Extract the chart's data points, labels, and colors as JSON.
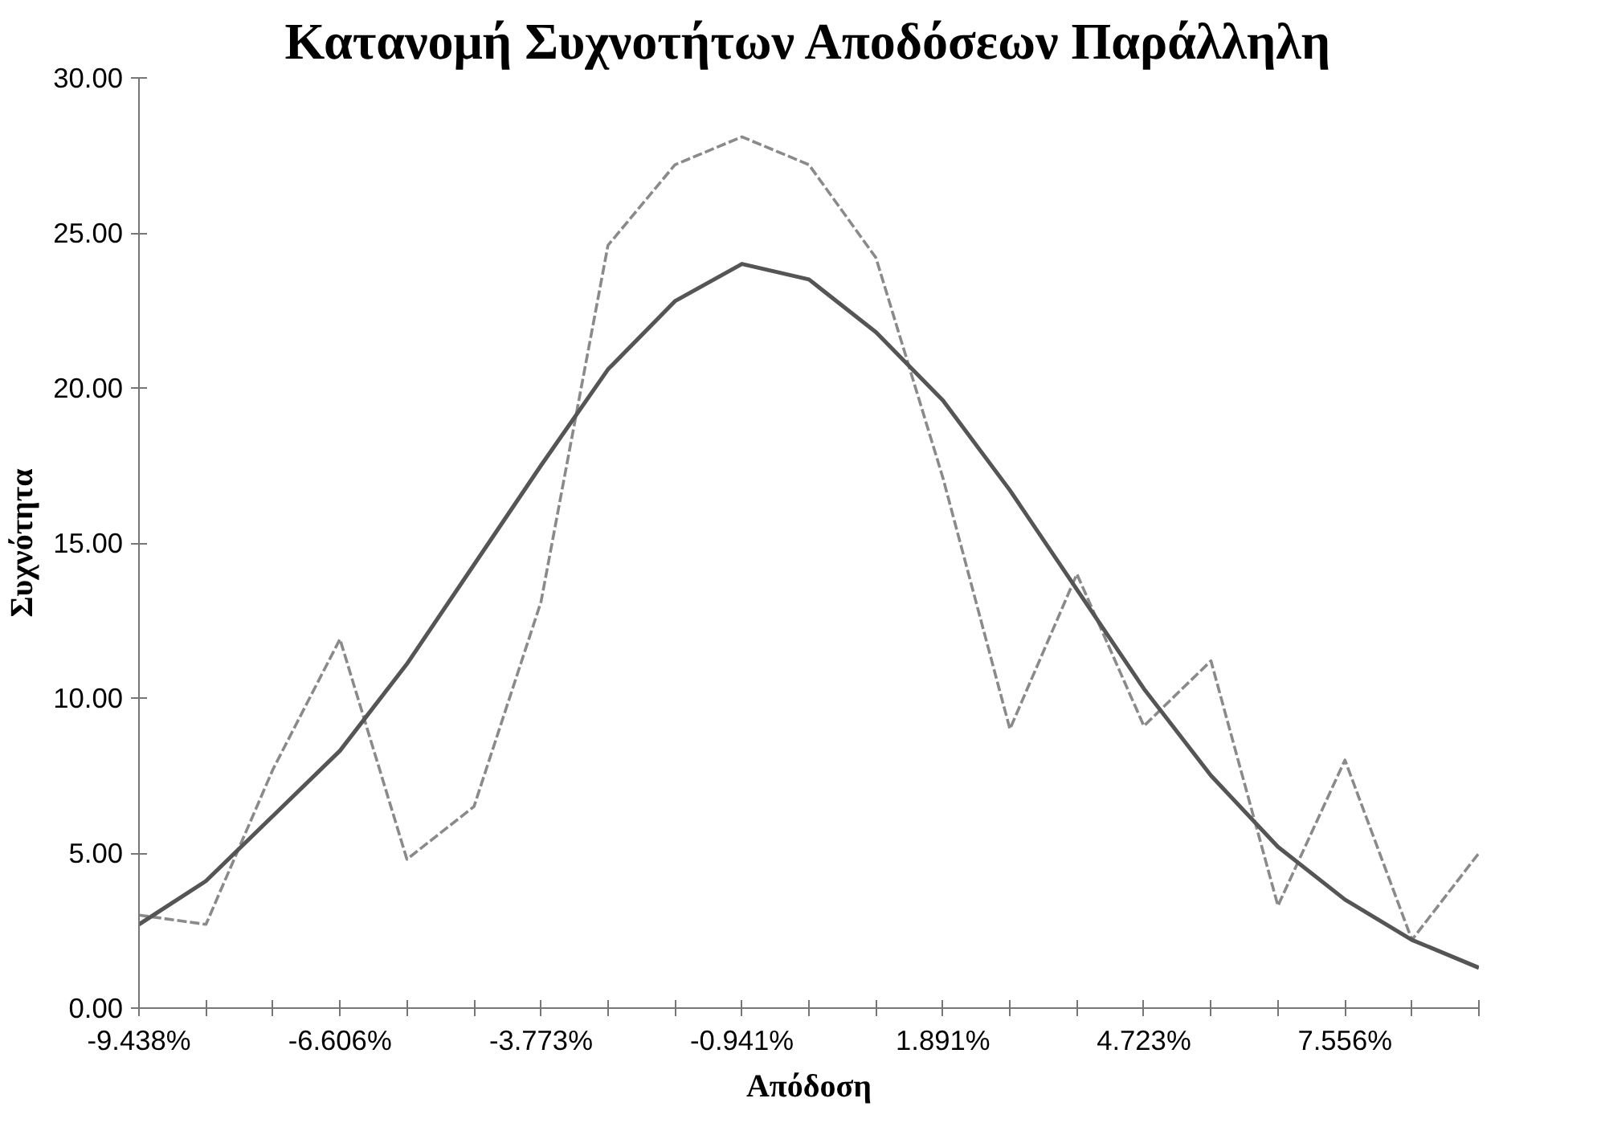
{
  "chart_data": {
    "type": "line",
    "title": "Κατανομή Συχνοτήτων Αποδόσεων Παράλληλη",
    "xlabel": "Απόδοση",
    "ylabel": "Συχνότητα",
    "x": [
      -9.438,
      -8.494,
      -7.55,
      -6.606,
      -5.662,
      -4.717,
      -3.773,
      -2.829,
      -1.885,
      -0.941,
      0.003,
      0.947,
      1.891,
      2.835,
      3.779,
      4.723,
      5.668,
      6.612,
      7.556,
      8.5,
      9.444
    ],
    "xlim": [
      -9.438,
      9.444
    ],
    "xticks": [
      {
        "value": -9.438,
        "label": "-9.438%"
      },
      {
        "value": -8.494,
        "label": null
      },
      {
        "value": -7.55,
        "label": null
      },
      {
        "value": -6.606,
        "label": "-6.606%"
      },
      {
        "value": -5.662,
        "label": null
      },
      {
        "value": -4.717,
        "label": null
      },
      {
        "value": -3.773,
        "label": "-3.773%"
      },
      {
        "value": -2.829,
        "label": null
      },
      {
        "value": -1.885,
        "label": null
      },
      {
        "value": -0.941,
        "label": "-0.941%"
      },
      {
        "value": 0.003,
        "label": null
      },
      {
        "value": 0.947,
        "label": null
      },
      {
        "value": 1.891,
        "label": "1.891%"
      },
      {
        "value": 2.835,
        "label": null
      },
      {
        "value": 3.779,
        "label": null
      },
      {
        "value": 4.723,
        "label": "4.723%"
      },
      {
        "value": 5.668,
        "label": null
      },
      {
        "value": 6.612,
        "label": null
      },
      {
        "value": 7.556,
        "label": "7.556%"
      },
      {
        "value": 8.5,
        "label": null
      },
      {
        "value": 9.444,
        "label": null
      }
    ],
    "ylim": [
      0,
      30
    ],
    "yticks": [
      {
        "value": 0,
        "label": "0.00"
      },
      {
        "value": 5,
        "label": "5.00"
      },
      {
        "value": 10,
        "label": "10.00"
      },
      {
        "value": 15,
        "label": "15.00"
      },
      {
        "value": 20,
        "label": "20.00"
      },
      {
        "value": 25,
        "label": "25.00"
      },
      {
        "value": 30,
        "label": "30.00"
      }
    ],
    "grid": false,
    "series": [
      {
        "color": "#8a8a8a",
        "line_style": "dashed",
        "values": [
          3.0,
          2.7,
          7.7,
          11.9,
          4.8,
          6.5,
          13.1,
          24.6,
          27.2,
          28.1,
          27.2,
          24.2,
          17.1,
          9.0,
          14.0,
          9.1,
          11.2,
          3.3,
          8.0,
          2.2,
          5.0
        ]
      },
      {
        "color": "#555555",
        "line_style": "solid",
        "values": [
          2.7,
          4.1,
          6.2,
          8.3,
          11.1,
          14.3,
          17.5,
          20.6,
          22.8,
          24.0,
          23.5,
          21.8,
          19.6,
          16.7,
          13.5,
          10.3,
          7.5,
          5.2,
          3.5,
          2.2,
          1.3
        ]
      }
    ]
  }
}
